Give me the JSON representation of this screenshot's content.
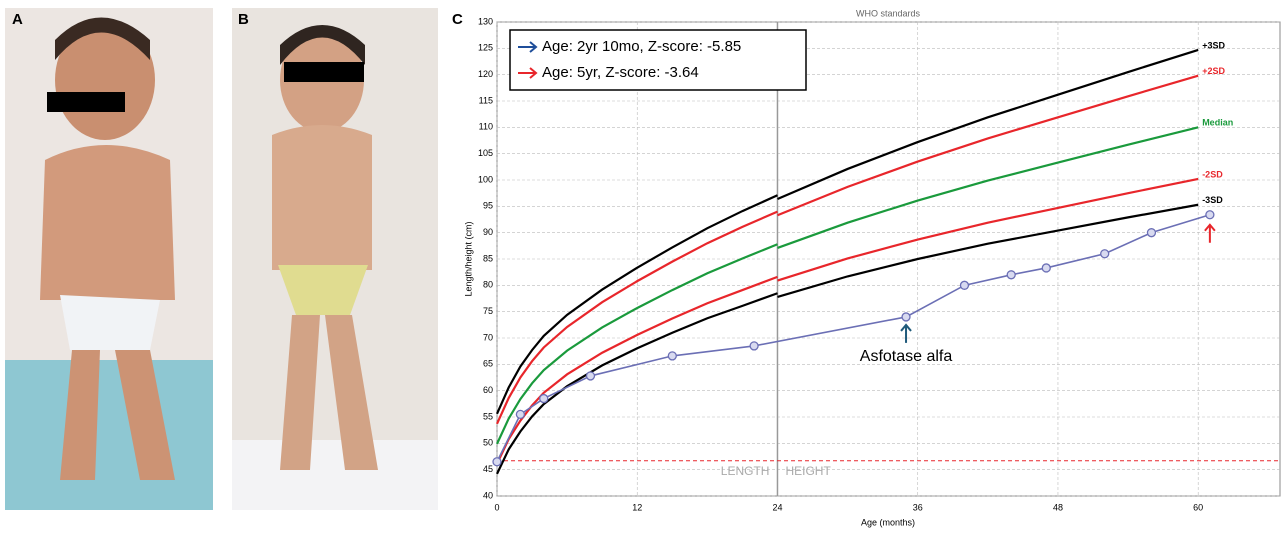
{
  "panel_labels": [
    "A",
    "B",
    "C"
  ],
  "chart_data": {
    "type": "line",
    "title": "WHO standards",
    "xlabel": "Age (months)",
    "ylabel": "Length/height (cm)",
    "xlim": [
      0,
      67
    ],
    "ylim": [
      40,
      130
    ],
    "xticks": [
      0,
      12,
      24,
      36,
      48,
      60
    ],
    "yticks": [
      40,
      45,
      50,
      55,
      60,
      65,
      70,
      75,
      80,
      85,
      90,
      95,
      100,
      105,
      110,
      115,
      120,
      125,
      130
    ],
    "grid": true,
    "x": [
      0,
      1,
      2,
      3,
      4,
      6,
      9,
      12,
      15,
      18,
      21,
      24,
      24,
      24,
      30,
      36,
      42,
      48,
      54,
      60
    ],
    "series": [
      {
        "name": "+3SD",
        "color": "#000000",
        "values": [
          55.6,
          60.6,
          64.6,
          67.7,
          70.4,
          74.4,
          79.2,
          83.35,
          87.2,
          90.85,
          94.1,
          97.1,
          null,
          96.4,
          102.1,
          107.2,
          111.9,
          116.2,
          120.5,
          124.7
        ]
      },
      {
        "name": "+2SD",
        "color": "#e8262b",
        "values": [
          53.7,
          58.6,
          62.5,
          65.6,
          68.2,
          72.1,
          76.8,
          80.8,
          84.5,
          88.0,
          91.1,
          94.0,
          null,
          93.3,
          98.7,
          103.5,
          107.9,
          111.9,
          115.9,
          119.8
        ]
      },
      {
        "name": "Median",
        "color": "#1a9a3c",
        "values": [
          49.9,
          54.7,
          58.4,
          61.4,
          63.9,
          67.6,
          72.0,
          75.7,
          79.1,
          82.3,
          85.1,
          87.8,
          null,
          87.1,
          91.9,
          96.1,
          99.9,
          103.3,
          106.7,
          110.0
        ]
      },
      {
        "name": "-2SD",
        "color": "#e8262b",
        "values": [
          46.1,
          50.8,
          54.3,
          57.2,
          59.6,
          63.1,
          67.2,
          70.6,
          73.7,
          76.6,
          79.1,
          81.6,
          null,
          80.9,
          85.1,
          88.7,
          91.9,
          94.7,
          97.5,
          100.2
        ]
      },
      {
        "name": "-3SD",
        "color": "#000000",
        "values": [
          44.2,
          48.85,
          52.25,
          55.1,
          57.45,
          60.85,
          64.8,
          68.05,
          71.0,
          73.75,
          76.1,
          78.5,
          null,
          77.8,
          81.7,
          85.0,
          87.9,
          90.4,
          92.9,
          95.3
        ]
      },
      {
        "color": "#6b6fb5",
        "x": [
          0,
          2,
          4,
          8,
          15,
          22,
          35,
          40,
          44,
          47,
          52,
          56,
          61
        ],
        "values": [
          46.5,
          55.5,
          58.5,
          62.8,
          66.6,
          68.5,
          74,
          80,
          82,
          83.3,
          86,
          90,
          93.4
        ]
      }
    ],
    "reference_y": 46.7,
    "reference_color": "#e8262b",
    "segment_labels": [
      "LENGTH",
      "HEIGHT"
    ],
    "annotation": "Asfotase alfa",
    "legend": [
      {
        "text": "Age: 2yr 10mo, Z-score: -5.85",
        "color": "#1f4e9a"
      },
      {
        "text": "Age: 5yr, Z-score: -3.64",
        "color": "#e8262b"
      }
    ]
  }
}
